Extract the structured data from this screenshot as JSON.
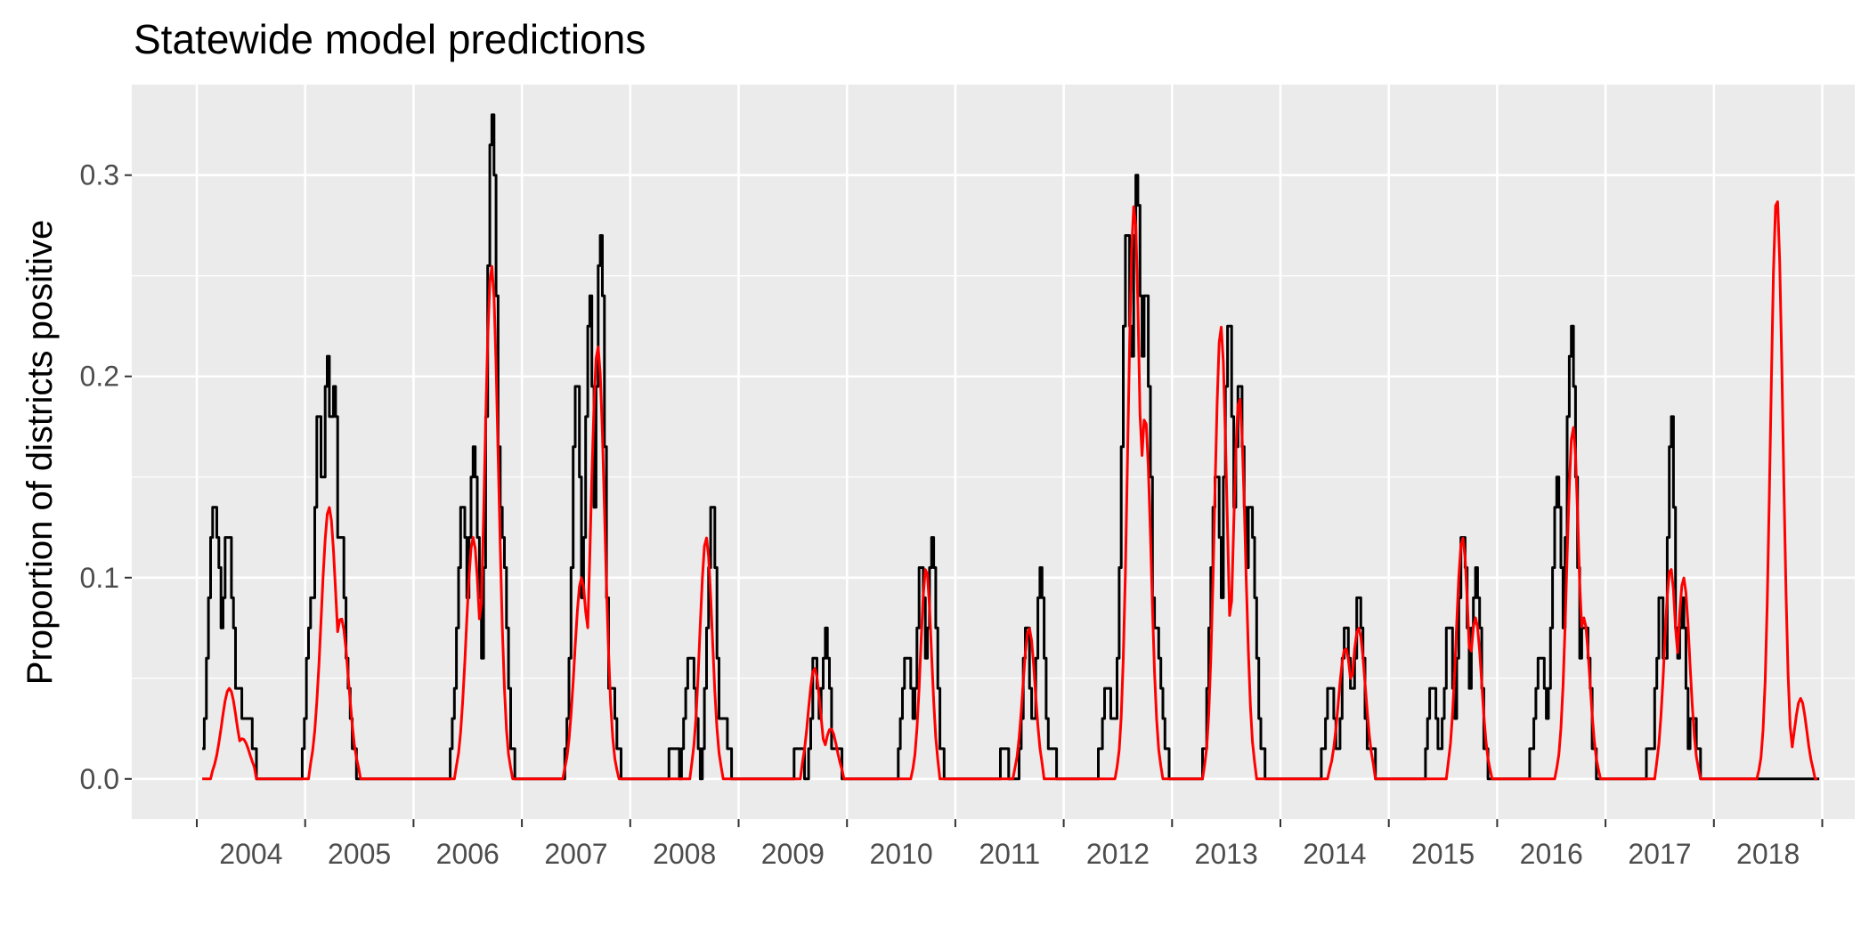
{
  "chart_data": {
    "type": "line",
    "title": "Statewide model predictions",
    "xlabel": "",
    "ylabel": "Proportion of districts positive",
    "ylim": [
      -0.02,
      0.345
    ],
    "xlim": [
      2003.4,
      2019.3
    ],
    "y_ticks": [
      0.0,
      0.1,
      0.2,
      0.3
    ],
    "y_tick_labels": [
      "0.0",
      "0.1",
      "0.2",
      "0.3"
    ],
    "x_labels": [
      "2004",
      "2005",
      "2006",
      "2007",
      "2008",
      "2009",
      "2010",
      "2011",
      "2012",
      "2013",
      "2014",
      "2015",
      "2016",
      "2017",
      "2018"
    ],
    "grid": true,
    "series": [
      {
        "color": "#000000",
        "seasons": [
          {
            "start": 2004,
            "peaks": [
              [
                0.16,
                0.135
              ],
              [
                0.28,
                0.12
              ],
              [
                0.38,
                0.045
              ],
              [
                0.45,
                0.03
              ]
            ],
            "width": 0.08
          },
          {
            "start": 2005,
            "peaks": [
              [
                0.05,
                0.09
              ],
              [
                0.12,
                0.18
              ],
              [
                0.2,
                0.21
              ],
              [
                0.26,
                0.195
              ],
              [
                0.33,
                0.12
              ],
              [
                0.38,
                0.045
              ]
            ],
            "width": 0.06
          },
          {
            "start": 2006,
            "peaks": [
              [
                0.45,
                0.135
              ],
              [
                0.55,
                0.165
              ],
              [
                0.72,
                0.335
              ],
              [
                0.8,
                0.135
              ]
            ],
            "width": 0.07
          },
          {
            "start": 2007,
            "peaks": [
              [
                0.5,
                0.195
              ],
              [
                0.62,
                0.24
              ],
              [
                0.72,
                0.27
              ],
              [
                0.82,
                0.045
              ]
            ],
            "width": 0.06
          },
          {
            "start": 2008,
            "peaks": [
              [
                0.4,
                0.015
              ],
              [
                0.55,
                0.06
              ],
              [
                0.75,
                0.135
              ],
              [
                0.85,
                0.03
              ]
            ],
            "width": 0.06
          },
          {
            "start": 2009,
            "peaks": [
              [
                0.55,
                0.015
              ],
              [
                0.7,
                0.06
              ],
              [
                0.8,
                0.075
              ],
              [
                0.9,
                0.015
              ]
            ],
            "width": 0.05
          },
          {
            "start": 2010,
            "peaks": [
              [
                0.55,
                0.06
              ],
              [
                0.68,
                0.105
              ],
              [
                0.78,
                0.12
              ]
            ],
            "width": 0.06
          },
          {
            "start": 2011,
            "peaks": [
              [
                0.45,
                0.015
              ],
              [
                0.65,
                0.075
              ],
              [
                0.78,
                0.105
              ],
              [
                0.88,
                0.015
              ]
            ],
            "width": 0.05
          },
          {
            "start": 2012,
            "peaks": [
              [
                0.4,
                0.045
              ],
              [
                0.58,
                0.27
              ],
              [
                0.67,
                0.3
              ],
              [
                0.75,
                0.24
              ],
              [
                0.85,
                0.075
              ]
            ],
            "width": 0.07
          },
          {
            "start": 2013,
            "peaks": [
              [
                0.4,
                0.15
              ],
              [
                0.52,
                0.225
              ],
              [
                0.62,
                0.195
              ],
              [
                0.72,
                0.135
              ]
            ],
            "width": 0.07
          },
          {
            "start": 2014,
            "peaks": [
              [
                0.45,
                0.045
              ],
              [
                0.6,
                0.075
              ],
              [
                0.72,
                0.09
              ],
              [
                0.82,
                0.015
              ]
            ],
            "width": 0.06
          },
          {
            "start": 2015,
            "peaks": [
              [
                0.4,
                0.045
              ],
              [
                0.55,
                0.075
              ],
              [
                0.68,
                0.12
              ],
              [
                0.8,
                0.105
              ],
              [
                0.85,
                0.015
              ]
            ],
            "width": 0.06
          },
          {
            "start": 2016,
            "peaks": [
              [
                0.4,
                0.06
              ],
              [
                0.55,
                0.15
              ],
              [
                0.68,
                0.225
              ],
              [
                0.8,
                0.075
              ]
            ],
            "width": 0.07
          },
          {
            "start": 2017,
            "peaks": [
              [
                0.4,
                0.015
              ],
              [
                0.5,
                0.09
              ],
              [
                0.6,
                0.18
              ],
              [
                0.7,
                0.09
              ],
              [
                0.8,
                0.03
              ]
            ],
            "width": 0.05
          }
        ],
        "end_x": 2018.98
      },
      {
        "color": "#ff0000",
        "seasons": [
          {
            "start": 2004,
            "peaks": [
              [
                0.3,
                0.045
              ],
              [
                0.42,
                0.02
              ]
            ],
            "width": 0.1
          },
          {
            "start": 2005,
            "peaks": [
              [
                0.22,
                0.135
              ],
              [
                0.33,
                0.08
              ]
            ],
            "width": 0.1
          },
          {
            "start": 2006,
            "peaks": [
              [
                0.55,
                0.12
              ],
              [
                0.72,
                0.255
              ]
            ],
            "width": 0.09
          },
          {
            "start": 2007,
            "peaks": [
              [
                0.55,
                0.1
              ],
              [
                0.7,
                0.215
              ]
            ],
            "width": 0.09
          },
          {
            "start": 2008,
            "peaks": [
              [
                0.7,
                0.12
              ]
            ],
            "width": 0.08
          },
          {
            "start": 2009,
            "peaks": [
              [
                0.7,
                0.055
              ],
              [
                0.85,
                0.025
              ]
            ],
            "width": 0.08
          },
          {
            "start": 2010,
            "peaks": [
              [
                0.73,
                0.105
              ]
            ],
            "width": 0.07
          },
          {
            "start": 2011,
            "peaks": [
              [
                0.68,
                0.075
              ]
            ],
            "width": 0.08
          },
          {
            "start": 2012,
            "peaks": [
              [
                0.65,
                0.285
              ],
              [
                0.75,
                0.18
              ]
            ],
            "width": 0.08
          },
          {
            "start": 2013,
            "peaks": [
              [
                0.45,
                0.225
              ],
              [
                0.62,
                0.19
              ]
            ],
            "width": 0.08
          },
          {
            "start": 2014,
            "peaks": [
              [
                0.6,
                0.065
              ],
              [
                0.72,
                0.075
              ]
            ],
            "width": 0.09
          },
          {
            "start": 2015,
            "peaks": [
              [
                0.68,
                0.12
              ],
              [
                0.8,
                0.08
              ]
            ],
            "width": 0.08
          },
          {
            "start": 2016,
            "peaks": [
              [
                0.7,
                0.175
              ],
              [
                0.8,
                0.08
              ]
            ],
            "width": 0.08
          },
          {
            "start": 2017,
            "peaks": [
              [
                0.6,
                0.105
              ],
              [
                0.72,
                0.1
              ]
            ],
            "width": 0.08
          },
          {
            "start": 2018,
            "peaks": [
              [
                0.58,
                0.29
              ],
              [
                0.8,
                0.04
              ]
            ],
            "width": 0.08
          }
        ],
        "end_x": 2018.97
      }
    ]
  }
}
